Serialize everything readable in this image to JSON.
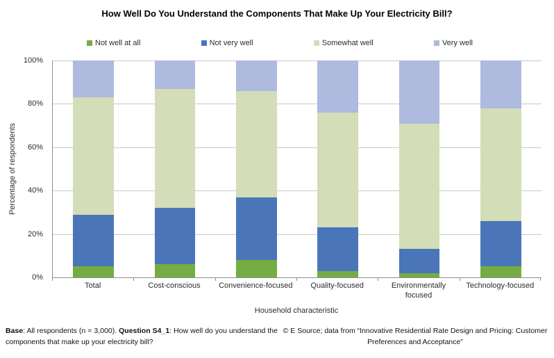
{
  "title": "How Well Do You Understand the Components That Make Up Your Electricity Bill?",
  "chart_data": {
    "type": "bar",
    "stacked": true,
    "title": "How Well Do You Understand the Components That Make Up Your Electricity Bill?",
    "categories": [
      "Total",
      "Cost-conscious",
      "Convenience-focused",
      "Quality-focused",
      "Environmentally focused",
      "Technology-focused"
    ],
    "series": [
      {
        "name": "Not well at all",
        "color": "#76ad43",
        "values": [
          5,
          6,
          8,
          3,
          2,
          5
        ]
      },
      {
        "name": "Not very well",
        "color": "#4a76b9",
        "values": [
          24,
          26,
          29,
          20,
          11,
          21
        ]
      },
      {
        "name": "Somewhat well",
        "color": "#d3ddb8",
        "values": [
          54,
          55,
          49,
          53,
          58,
          52
        ]
      },
      {
        "name": "Very well",
        "color": "#aebade",
        "values": [
          17,
          13,
          14,
          24,
          29,
          22
        ]
      }
    ],
    "xlabel": "Household characteristic",
    "ylabel": "Percentage of respondents",
    "ylim": [
      0,
      100
    ],
    "yticks": [
      "0%",
      "20%",
      "40%",
      "60%",
      "80%",
      "100%"
    ],
    "ytick_step": 20,
    "grid": "horizontal",
    "legend_position": "top",
    "bar_colors_hex": {
      "not_well_at_all": "#76ad43",
      "not_very_well": "#4a76b9",
      "somewhat_well": "#d3ddb8",
      "very_well": "#aebade"
    }
  },
  "footnotes": {
    "base_label": "Base",
    "base_rest": ": All respondents (n = 3,000). ",
    "question_label": "Question S4_1",
    "question_rest": ": How well do you understand the components that make up your electricity bill?",
    "source": "© E Source; data from “Innovative Residential Rate Design and Pricing: Customer Preferences and Acceptance”"
  }
}
